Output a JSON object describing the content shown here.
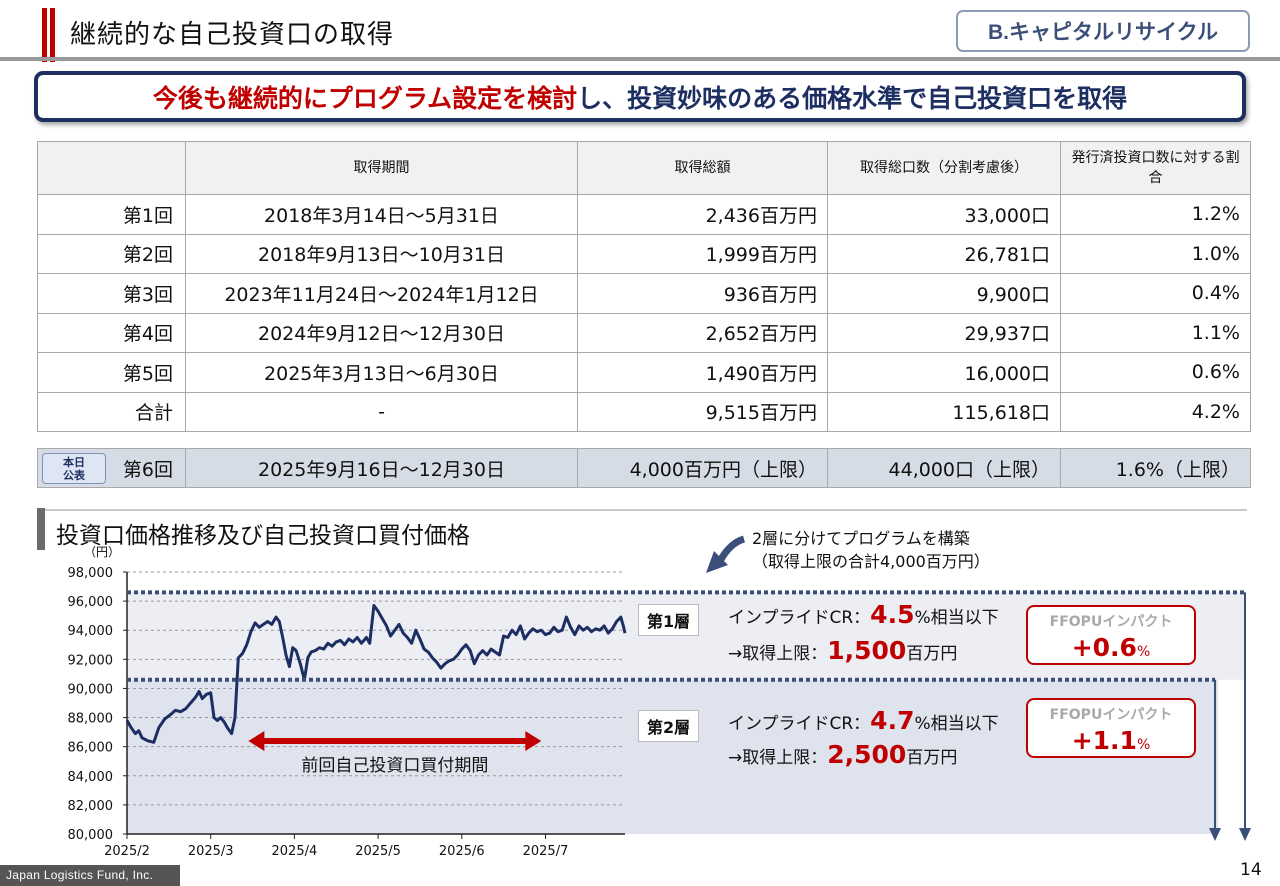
{
  "header": {
    "title": "継続的な自己投資口の取得",
    "section_tag": "B.キャピタルリサイクル"
  },
  "banner": {
    "part_red": "今後も継続的にプログラム設定を検討",
    "part_navy": "し、投資妙味のある価格水準で自己投資口を取得"
  },
  "table": {
    "headers": [
      "",
      "取得期間",
      "取得総額",
      "取得総口数（分割考慮後）",
      "発行済投資口数に対する割合"
    ],
    "rows": [
      [
        "第1回",
        "2018年3月14日～5月31日",
        "2,436百万円",
        "33,000口",
        "1.2%"
      ],
      [
        "第2回",
        "2018年9月13日～10月31日",
        "1,999百万円",
        "26,781口",
        "1.0%"
      ],
      [
        "第3回",
        "2023年11月24日～2024年1月12日",
        "936百万円",
        "9,900口",
        "0.4%"
      ],
      [
        "第4回",
        "2024年9月12日～12月30日",
        "2,652百万円",
        "29,937口",
        "1.1%"
      ],
      [
        "第5回",
        "2025年3月13日～6月30日",
        "1,490百万円",
        "16,000口",
        "0.6%"
      ],
      [
        "合計",
        "-",
        "9,515百万円",
        "115,618口",
        "4.2%"
      ]
    ],
    "new_row": {
      "badge": "本日公表",
      "cells": [
        "第6回",
        "2025年9月16日～12月30日",
        "4,000百万円（上限）",
        "44,000口（上限）",
        "1.6%（上限）"
      ]
    }
  },
  "chart_section": {
    "title": "投資口価格推移及び自己投資口買付価格",
    "y_unit": "（円）",
    "note_line1": "2層に分けてプログラムを構築",
    "note_line2": "（取得上限の合計4,000百万円）",
    "period_label": "前回自己投資口買付期間",
    "layers": [
      {
        "label": "第1層",
        "cr_prefix": "インプライドCR：",
        "cr_value": "4.5",
        "cr_suffix": "%相当以下",
        "limit_prefix": "→取得上限：",
        "limit_value": "1,500",
        "limit_suffix": "百万円",
        "ffo_title": "FFOPUインパクト",
        "ffo_value": "+0.6",
        "ffo_unit": "%"
      },
      {
        "label": "第2層",
        "cr_prefix": "インプライドCR：",
        "cr_value": "4.7",
        "cr_suffix": "%相当以下",
        "limit_prefix": "→取得上限：",
        "limit_value": "2,500",
        "limit_suffix": "百万円",
        "ffo_title": "FFOPUインパクト",
        "ffo_value": "+1.1",
        "ffo_unit": "%"
      }
    ]
  },
  "chart_data": {
    "type": "line",
    "title": "投資口価格推移及び自己投資口買付価格",
    "ylabel": "（円）",
    "ylim": [
      80000,
      98000
    ],
    "y_ticks": [
      "80,000",
      "82,000",
      "84,000",
      "86,000",
      "88,000",
      "90,000",
      "92,000",
      "94,000",
      "96,000",
      "98,000"
    ],
    "x_ticks": [
      "2025/2",
      "2025/3",
      "2025/4",
      "2025/5",
      "2025/6",
      "2025/7"
    ],
    "x_range_months": [
      0,
      5.95
    ],
    "grid": true,
    "series": [
      {
        "color": "#1c2e62",
        "points": [
          [
            0.0,
            87800
          ],
          [
            0.05,
            87300
          ],
          [
            0.1,
            86900
          ],
          [
            0.14,
            87100
          ],
          [
            0.18,
            86600
          ],
          [
            0.25,
            86400
          ],
          [
            0.32,
            86300
          ],
          [
            0.38,
            87300
          ],
          [
            0.45,
            87900
          ],
          [
            0.52,
            88200
          ],
          [
            0.58,
            88500
          ],
          [
            0.64,
            88400
          ],
          [
            0.7,
            88600
          ],
          [
            0.76,
            89000
          ],
          [
            0.82,
            89400
          ],
          [
            0.86,
            89800
          ],
          [
            0.9,
            89300
          ],
          [
            0.95,
            89600
          ],
          [
            1.0,
            89700
          ],
          [
            1.04,
            88000
          ],
          [
            1.08,
            87800
          ],
          [
            1.12,
            88000
          ],
          [
            1.16,
            87700
          ],
          [
            1.2,
            87300
          ],
          [
            1.25,
            86900
          ],
          [
            1.29,
            88000
          ],
          [
            1.33,
            92100
          ],
          [
            1.38,
            92400
          ],
          [
            1.43,
            93000
          ],
          [
            1.48,
            93900
          ],
          [
            1.53,
            94500
          ],
          [
            1.58,
            94200
          ],
          [
            1.63,
            94400
          ],
          [
            1.68,
            94600
          ],
          [
            1.73,
            94400
          ],
          [
            1.78,
            94900
          ],
          [
            1.82,
            94600
          ],
          [
            1.86,
            93500
          ],
          [
            1.9,
            92300
          ],
          [
            1.94,
            91500
          ],
          [
            1.98,
            92800
          ],
          [
            2.02,
            92600
          ],
          [
            2.07,
            91700
          ],
          [
            2.12,
            90600
          ],
          [
            2.16,
            92100
          ],
          [
            2.2,
            92500
          ],
          [
            2.25,
            92600
          ],
          [
            2.3,
            92800
          ],
          [
            2.35,
            92700
          ],
          [
            2.4,
            93100
          ],
          [
            2.45,
            92900
          ],
          [
            2.5,
            93200
          ],
          [
            2.55,
            93300
          ],
          [
            2.6,
            93000
          ],
          [
            2.65,
            93400
          ],
          [
            2.7,
            93200
          ],
          [
            2.75,
            93500
          ],
          [
            2.8,
            93100
          ],
          [
            2.86,
            93500
          ],
          [
            2.9,
            93100
          ],
          [
            2.95,
            95700
          ],
          [
            3.0,
            95300
          ],
          [
            3.05,
            94800
          ],
          [
            3.1,
            94300
          ],
          [
            3.15,
            93600
          ],
          [
            3.2,
            94000
          ],
          [
            3.25,
            94400
          ],
          [
            3.3,
            93800
          ],
          [
            3.35,
            93500
          ],
          [
            3.4,
            93100
          ],
          [
            3.45,
            94000
          ],
          [
            3.5,
            93400
          ],
          [
            3.55,
            92700
          ],
          [
            3.6,
            92500
          ],
          [
            3.65,
            92100
          ],
          [
            3.7,
            91800
          ],
          [
            3.75,
            91400
          ],
          [
            3.8,
            91700
          ],
          [
            3.85,
            91900
          ],
          [
            3.9,
            92000
          ],
          [
            3.95,
            92300
          ],
          [
            4.0,
            92700
          ],
          [
            4.05,
            93000
          ],
          [
            4.1,
            92600
          ],
          [
            4.15,
            91700
          ],
          [
            4.2,
            92300
          ],
          [
            4.25,
            92600
          ],
          [
            4.3,
            92300
          ],
          [
            4.35,
            92700
          ],
          [
            4.4,
            92500
          ],
          [
            4.45,
            92300
          ],
          [
            4.5,
            93600
          ],
          [
            4.55,
            93500
          ],
          [
            4.6,
            94000
          ],
          [
            4.65,
            93700
          ],
          [
            4.7,
            94300
          ],
          [
            4.75,
            93400
          ],
          [
            4.8,
            93800
          ],
          [
            4.85,
            94100
          ],
          [
            4.9,
            93900
          ],
          [
            4.95,
            94000
          ],
          [
            5.0,
            93700
          ],
          [
            5.05,
            93800
          ],
          [
            5.1,
            94200
          ],
          [
            5.15,
            93900
          ],
          [
            5.2,
            94000
          ],
          [
            5.25,
            94900
          ],
          [
            5.3,
            94200
          ],
          [
            5.35,
            93700
          ],
          [
            5.4,
            94300
          ],
          [
            5.45,
            94000
          ],
          [
            5.5,
            94200
          ],
          [
            5.55,
            93900
          ],
          [
            5.6,
            94100
          ],
          [
            5.65,
            94000
          ],
          [
            5.7,
            94300
          ],
          [
            5.75,
            93800
          ],
          [
            5.8,
            94100
          ],
          [
            5.85,
            94600
          ],
          [
            5.9,
            94900
          ],
          [
            5.93,
            94300
          ],
          [
            5.95,
            93800
          ]
        ]
      }
    ],
    "purchase_levels": [
      {
        "label": "第1層",
        "value": 96600
      },
      {
        "label": "第2層",
        "value": 90600
      }
    ],
    "annotation_period_months": [
      1.45,
      4.95
    ]
  }
}
